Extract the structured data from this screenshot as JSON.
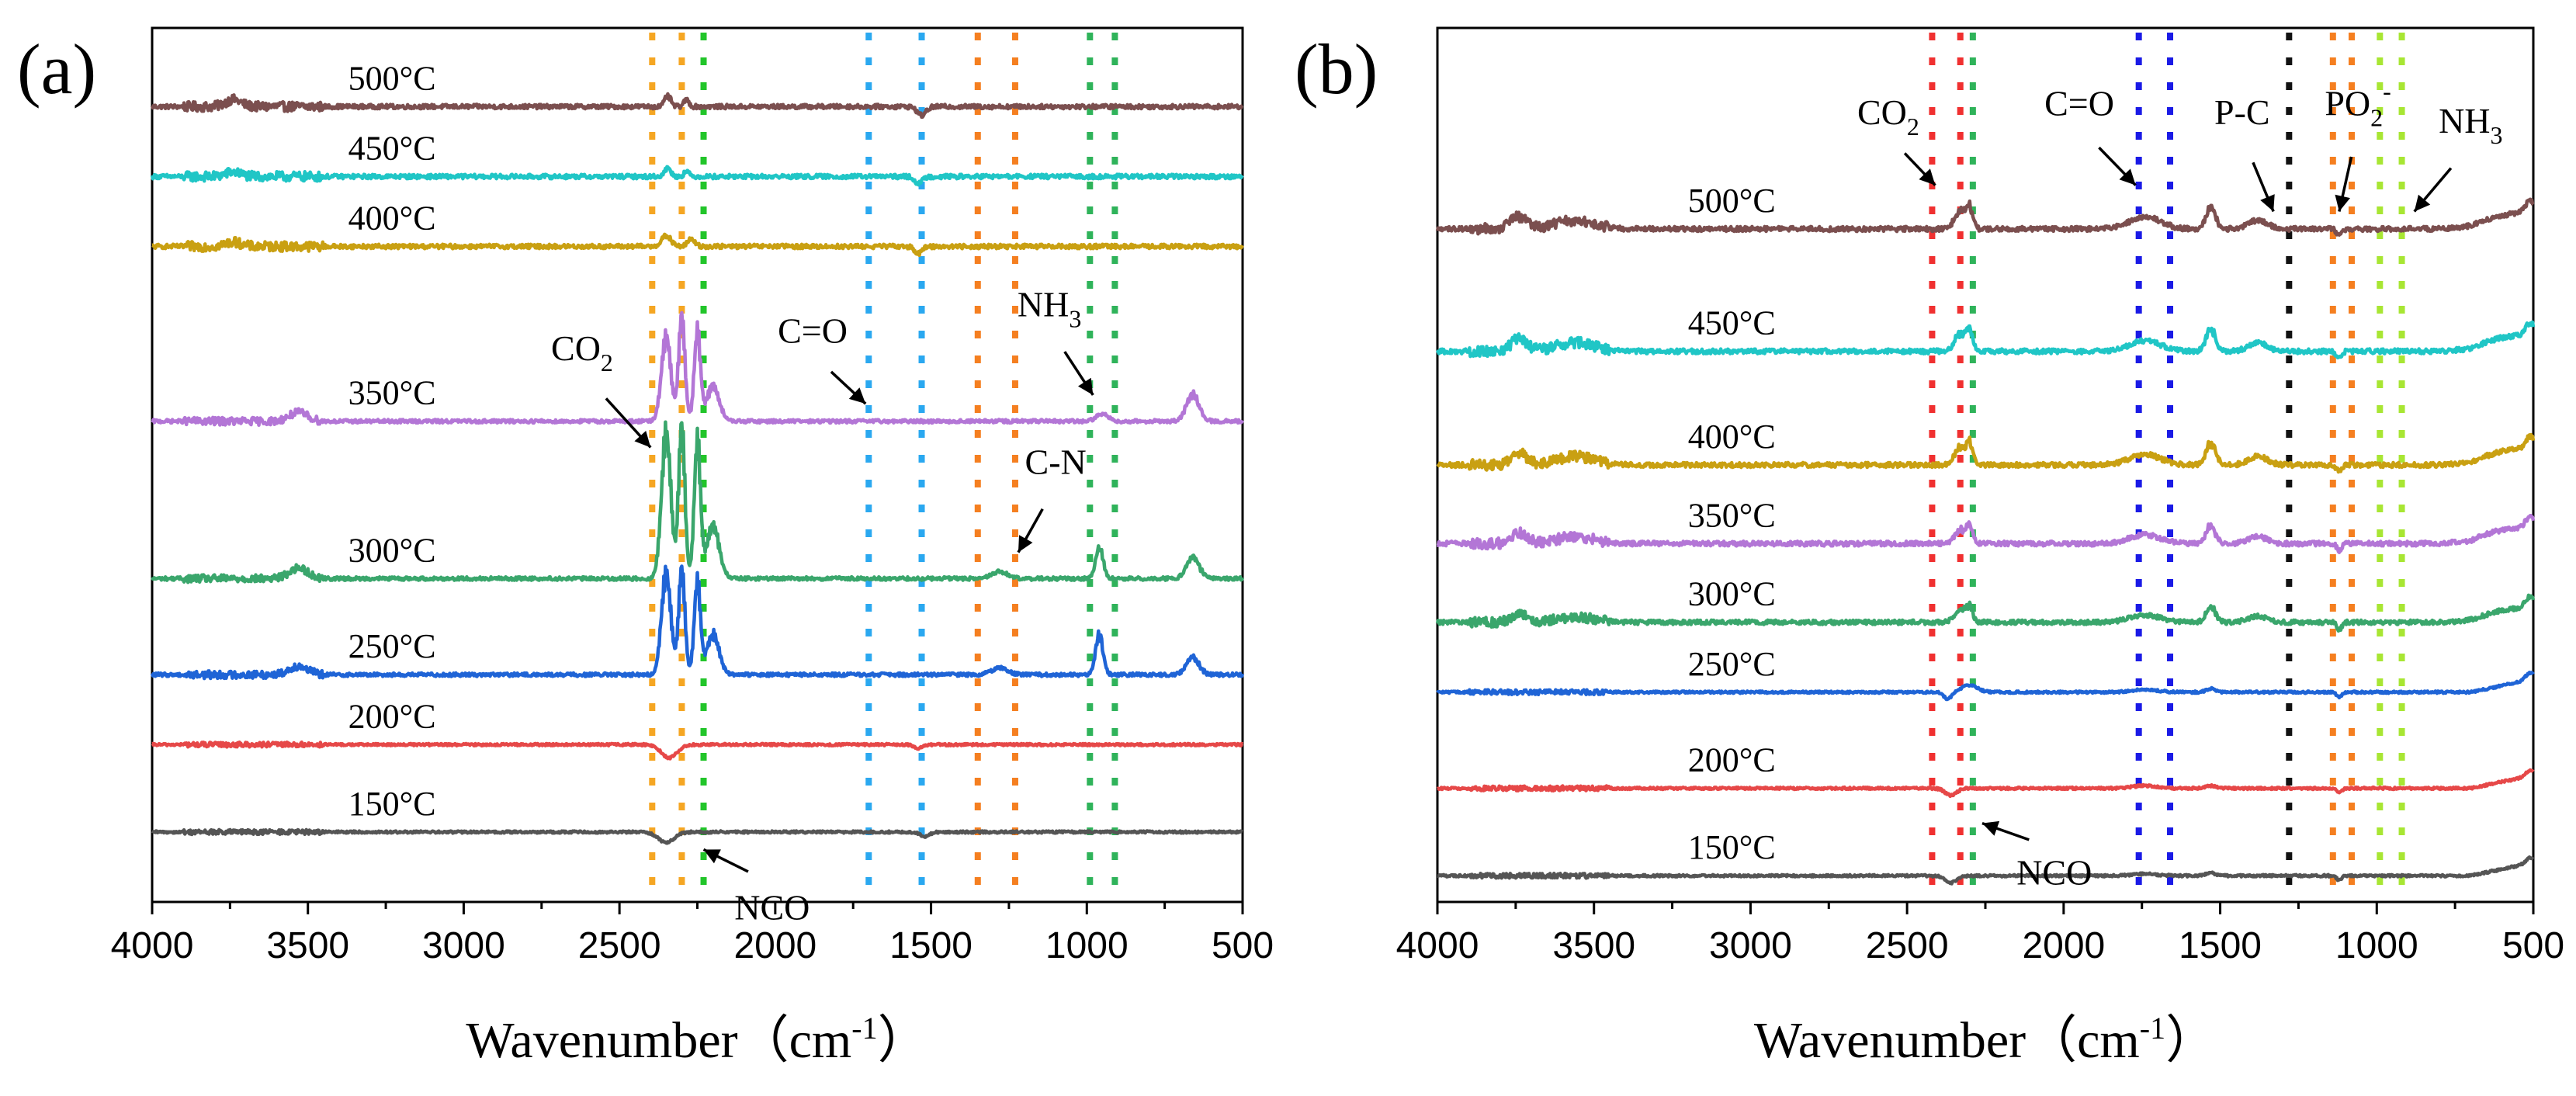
{
  "chart_data": [
    {
      "type": "line",
      "panel": "(a)",
      "xlabel": "Wavenumber",
      "xlabel_unit": "（cm",
      "xlabel_unit_sup": "-1",
      "xlabel_unit_close": "）",
      "xlim": [
        4000,
        500
      ],
      "xticks": [
        "4000",
        "3500",
        "3000",
        "2500",
        "2000",
        "1500",
        "1000",
        "500"
      ],
      "series": [
        {
          "name": "500°C",
          "color": "#7b4f4f",
          "offset": 91,
          "noise": 2.0,
          "peaks": [
            [
              3740,
              8,
              25,
              1
            ],
            [
              2345,
              12,
              10,
              2
            ],
            [
              2285,
              8,
              8,
              2
            ],
            [
              1530,
              -10,
              14,
              1
            ]
          ]
        },
        {
          "name": "450°C",
          "color": "#20c6c6",
          "offset": 83,
          "noise": 2.0,
          "peaks": [
            [
              3740,
              5,
              25,
              1
            ],
            [
              2345,
              10,
              10,
              2
            ],
            [
              2285,
              6,
              8,
              2
            ],
            [
              1540,
              -8,
              12,
              1
            ]
          ]
        },
        {
          "name": "400°C",
          "color": "#c9a012",
          "offset": 75,
          "noise": 2.0,
          "peaks": [
            [
              3740,
              5,
              25,
              1
            ],
            [
              2350,
              12,
              15,
              2
            ],
            [
              2270,
              8,
              12,
              2
            ],
            [
              1540,
              -8,
              12,
              1
            ]
          ]
        },
        {
          "name": "350°C",
          "color": "#b376d6",
          "offset": 55,
          "noise": 1.6,
          "peaks": [
            [
              3530,
              10,
              30,
              1
            ],
            [
              2350,
              96,
              15,
              4
            ],
            [
              2300,
              120,
              10,
              4
            ],
            [
              2250,
              100,
              10,
              4
            ],
            [
              2200,
              40,
              20,
              3
            ],
            [
              950,
              8,
              20,
              1
            ],
            [
              660,
              30,
              20,
              2
            ]
          ]
        },
        {
          "name": "300°C",
          "color": "#3aa66c",
          "offset": 37,
          "noise": 1.6,
          "peaks": [
            [
              3530,
              12,
              30,
              1
            ],
            [
              2350,
              165,
              15,
              4
            ],
            [
              2300,
              175,
              10,
              4
            ],
            [
              2250,
              155,
              10,
              4
            ],
            [
              2200,
              60,
              20,
              3
            ],
            [
              1280,
              8,
              25,
              1
            ],
            [
              960,
              35,
              12,
              2
            ],
            [
              660,
              25,
              20,
              2
            ]
          ]
        },
        {
          "name": "250°C",
          "color": "#1f64d6",
          "offset": 26,
          "noise": 1.6,
          "peaks": [
            [
              3530,
              10,
              30,
              1
            ],
            [
              2350,
              115,
              15,
              4
            ],
            [
              2300,
              120,
              10,
              4
            ],
            [
              2250,
              105,
              10,
              4
            ],
            [
              2200,
              45,
              20,
              3
            ],
            [
              1280,
              8,
              25,
              1
            ],
            [
              960,
              45,
              12,
              2
            ],
            [
              660,
              20,
              20,
              2
            ]
          ]
        },
        {
          "name": "200°C",
          "color": "#e64848",
          "offset": 18,
          "noise": 1.0,
          "peaks": [
            [
              2340,
              -15,
              25,
              1
            ],
            [
              1540,
              -4,
              15,
              1
            ]
          ]
        },
        {
          "name": "150°C",
          "color": "#555555",
          "offset": 8,
          "noise": 1.0,
          "peaks": [
            [
              2350,
              -12,
              25,
              1
            ],
            [
              1520,
              -5,
              15,
              1
            ]
          ]
        }
      ],
      "dotted_lines": [
        {
          "x": 2395,
          "color": "#f5a623"
        },
        {
          "x": 2300,
          "color": "#f5a623"
        },
        {
          "x": 2230,
          "color": "#22c52a"
        },
        {
          "x": 1700,
          "color": "#2aa8f0"
        },
        {
          "x": 1530,
          "color": "#2aa8f0"
        },
        {
          "x": 1350,
          "color": "#f57f20"
        },
        {
          "x": 1230,
          "color": "#f57f20"
        },
        {
          "x": 990,
          "color": "#2fb35a"
        },
        {
          "x": 910,
          "color": "#2fb35a"
        }
      ],
      "annotations": [
        {
          "name": "co2",
          "text": "CO",
          "sub": "2",
          "at": [
            2620,
            62
          ],
          "arrow_to": [
            2400,
            52
          ]
        },
        {
          "name": "c-o",
          "text": "C=O",
          "sub": "",
          "at": [
            1880,
            64
          ],
          "arrow_to": [
            1710,
            57
          ]
        },
        {
          "name": "nh3",
          "text": "NH",
          "sub": "3",
          "at": [
            1120,
            67
          ],
          "arrow_to": [
            980,
            58
          ]
        },
        {
          "name": "c-n",
          "text": "C-N",
          "sub": "",
          "at": [
            1100,
            49
          ],
          "arrow_to": [
            1220,
            40
          ]
        },
        {
          "name": "nco",
          "text": "NCO",
          "sub": "",
          "at": [
            2010,
            -2
          ],
          "arrow_to": [
            2230,
            6
          ]
        }
      ]
    },
    {
      "type": "line",
      "panel": "(b)",
      "xlabel": "Wavenumber",
      "xlabel_unit": "（cm",
      "xlabel_unit_sup": "-1",
      "xlabel_unit_close": "）",
      "xlim": [
        4000,
        500
      ],
      "xticks": [
        "4000",
        "3500",
        "3000",
        "2500",
        "2000",
        "1500",
        "1000",
        "500"
      ],
      "series": [
        {
          "name": "500°C",
          "color": "#7b4f4f",
          "offset": 77,
          "noise": 2.2,
          "peaks": [
            [
              3740,
              14,
              25,
              1
            ],
            [
              3560,
              10,
              60,
              1
            ],
            [
              2330,
              20,
              18,
              2
            ],
            [
              2300,
              22,
              10,
              2
            ],
            [
              1740,
              14,
              50,
              1
            ],
            [
              1530,
              25,
              15,
              2
            ],
            [
              1380,
              10,
              30,
              1
            ],
            [
              1120,
              -8,
              8,
              1
            ],
            [
              600,
              8,
              80,
              1
            ],
            [
              510,
              14,
              15,
              1
            ]
          ]
        },
        {
          "name": "450°C",
          "color": "#20c6c6",
          "offset": 63,
          "noise": 2.2,
          "peaks": [
            [
              3740,
              14,
              25,
              1
            ],
            [
              3560,
              10,
              60,
              1
            ],
            [
              2330,
              20,
              18,
              2
            ],
            [
              2300,
              22,
              10,
              2
            ],
            [
              1740,
              12,
              50,
              1
            ],
            [
              1530,
              25,
              15,
              2
            ],
            [
              1380,
              10,
              30,
              1
            ],
            [
              1120,
              -8,
              8,
              1
            ],
            [
              600,
              8,
              80,
              1
            ],
            [
              510,
              14,
              15,
              1
            ]
          ]
        },
        {
          "name": "400°C",
          "color": "#c9a012",
          "offset": 50,
          "noise": 2.2,
          "peaks": [
            [
              3740,
              14,
              25,
              1
            ],
            [
              3560,
              10,
              60,
              1
            ],
            [
              2330,
              20,
              18,
              2
            ],
            [
              2300,
              22,
              10,
              2
            ],
            [
              1740,
              12,
              50,
              1
            ],
            [
              1530,
              25,
              15,
              2
            ],
            [
              1380,
              10,
              30,
              1
            ],
            [
              1120,
              -8,
              8,
              1
            ],
            [
              600,
              8,
              80,
              1
            ],
            [
              510,
              14,
              15,
              1
            ]
          ]
        },
        {
          "name": "350°C",
          "color": "#b376d6",
          "offset": 41,
          "noise": 2.2,
          "peaks": [
            [
              3740,
              12,
              25,
              1
            ],
            [
              3560,
              8,
              60,
              1
            ],
            [
              2330,
              16,
              18,
              2
            ],
            [
              2300,
              18,
              10,
              2
            ],
            [
              1740,
              10,
              50,
              1
            ],
            [
              1530,
              20,
              15,
              2
            ],
            [
              1380,
              8,
              30,
              1
            ],
            [
              1120,
              -8,
              8,
              1
            ],
            [
              600,
              8,
              80,
              1
            ],
            [
              510,
              12,
              15,
              1
            ]
          ]
        },
        {
          "name": "300°C",
          "color": "#3aa66c",
          "offset": 32,
          "noise": 2.0,
          "peaks": [
            [
              3740,
              10,
              25,
              1
            ],
            [
              3560,
              6,
              60,
              1
            ],
            [
              2330,
              14,
              18,
              2
            ],
            [
              2300,
              16,
              10,
              2
            ],
            [
              1740,
              8,
              50,
              1
            ],
            [
              1530,
              18,
              15,
              2
            ],
            [
              1380,
              7,
              30,
              1
            ],
            [
              1120,
              -8,
              8,
              1
            ],
            [
              600,
              6,
              80,
              1
            ],
            [
              510,
              12,
              15,
              1
            ]
          ]
        },
        {
          "name": "250°C",
          "color": "#1f64d6",
          "offset": 24,
          "noise": 1.0,
          "peaks": [
            [
              2370,
              -8,
              12,
              1
            ],
            [
              2300,
              8,
              25,
              1
            ],
            [
              1740,
              3,
              40,
              1
            ],
            [
              1530,
              4,
              15,
              1
            ],
            [
              1120,
              -6,
              8,
              1
            ],
            [
              510,
              8,
              15,
              1
            ]
          ]
        },
        {
          "name": "200°C",
          "color": "#e64848",
          "offset": 13,
          "noise": 1.0,
          "peaks": [
            [
              2360,
              -8,
              18,
              1
            ],
            [
              1740,
              3,
              40,
              1
            ],
            [
              1530,
              3,
              15,
              1
            ],
            [
              1120,
              -5,
              8,
              1
            ],
            [
              510,
              6,
              15,
              1
            ]
          ]
        },
        {
          "name": "150°C",
          "color": "#555555",
          "offset": 3,
          "noise": 1.0,
          "peaks": [
            [
              2360,
              -8,
              18,
              1
            ],
            [
              1740,
              2,
              40,
              1
            ],
            [
              1530,
              3,
              15,
              1
            ],
            [
              1120,
              -5,
              8,
              1
            ],
            [
              510,
              6,
              15,
              1
            ]
          ]
        }
      ],
      "dotted_lines": [
        {
          "x": 2420,
          "color": "#f03030"
        },
        {
          "x": 2330,
          "color": "#f03030"
        },
        {
          "x": 2290,
          "color": "#2fb35a"
        },
        {
          "x": 1760,
          "color": "#1a1ae6"
        },
        {
          "x": 1660,
          "color": "#1a1ae6"
        },
        {
          "x": 1280,
          "color": "#111111"
        },
        {
          "x": 1140,
          "color": "#f57f20"
        },
        {
          "x": 1080,
          "color": "#f57f20"
        },
        {
          "x": 990,
          "color": "#a8e633"
        },
        {
          "x": 920,
          "color": "#a8e633"
        }
      ],
      "annotations": [
        {
          "name": "co2",
          "text": "CO",
          "sub": "2",
          "at": [
            2560,
            89
          ],
          "arrow_to": [
            2410,
            82
          ]
        },
        {
          "name": "c-o",
          "text": "C=O",
          "sub": "",
          "at": [
            1950,
            90
          ],
          "arrow_to": [
            1770,
            82
          ]
        },
        {
          "name": "p-c",
          "text": "P-C",
          "sub": "",
          "at": [
            1430,
            89
          ],
          "arrow_to": [
            1330,
            79
          ]
        },
        {
          "name": "po2",
          "text": "PO",
          "sub": "2",
          "sup": "-",
          "at": [
            1060,
            90
          ],
          "arrow_to": [
            1120,
            79
          ]
        },
        {
          "name": "nh3",
          "text": "NH",
          "sub": "3",
          "at": [
            700,
            88
          ],
          "arrow_to": [
            880,
            79
          ]
        },
        {
          "name": "nco",
          "text": "NCO",
          "sub": "",
          "at": [
            2030,
            2
          ],
          "arrow_to": [
            2260,
            9
          ]
        }
      ]
    }
  ]
}
